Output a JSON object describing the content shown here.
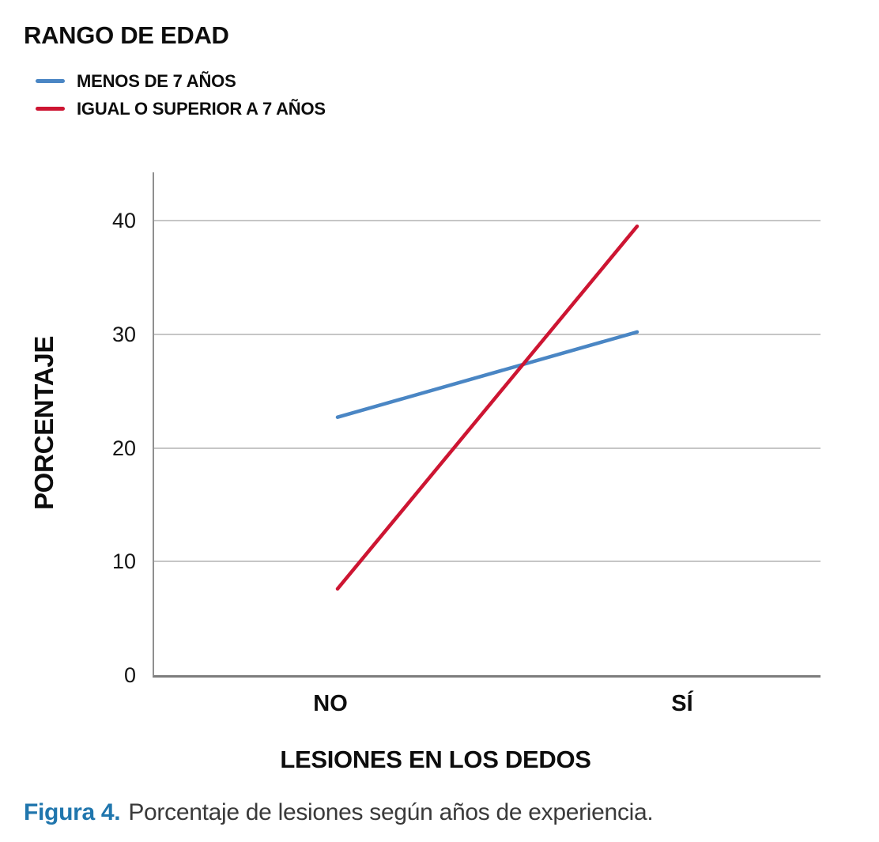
{
  "legend": {
    "title": "RANGO DE EDAD",
    "items": [
      {
        "label": "MENOS DE 7 AÑOS",
        "color": "#4a86c4"
      },
      {
        "label": "IGUAL O SUPERIOR A 7 AÑOS",
        "color": "#cd1532"
      }
    ]
  },
  "chart_data": {
    "type": "line",
    "categories": [
      "NO",
      "SÍ"
    ],
    "series": [
      {
        "name": "MENOS DE 7 AÑOS",
        "color": "#4a86c4",
        "values": [
          22.7,
          30.2
        ]
      },
      {
        "name": "IGUAL O SUPERIOR A 7 AÑOS",
        "color": "#cd1532",
        "values": [
          7.6,
          39.5
        ]
      }
    ],
    "title": "",
    "xlabel": "LESIONES EN LOS DEDOS",
    "ylabel": "PORCENTAJE",
    "yticks": [
      0,
      10,
      20,
      30,
      40
    ],
    "ylim": [
      0,
      44.3
    ],
    "grid": true,
    "legend_position": "top-left",
    "colors": {
      "gridline": "#c6c6c6",
      "axis": "#7d7d7d"
    }
  },
  "caption": {
    "label": "Figura 4.",
    "text": "Porcentaje de lesiones según años de experiencia."
  }
}
